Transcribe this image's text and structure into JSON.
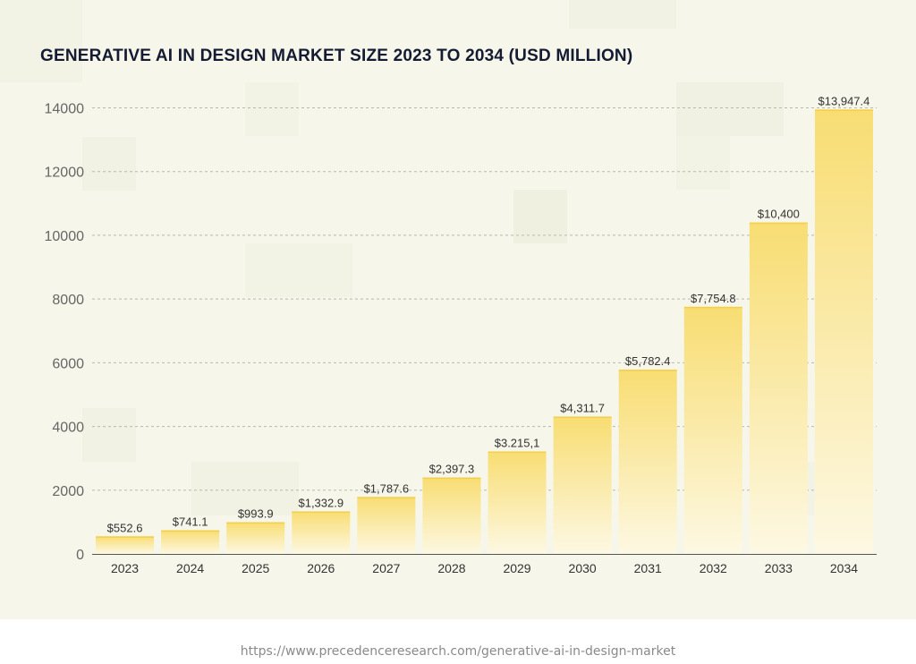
{
  "chart_data": {
    "type": "bar",
    "title": "GENERATIVE AI IN DESIGN MARKET SIZE 2023 TO 2034 (USD MILLION)",
    "xlabel": "",
    "ylabel": "",
    "categories": [
      "2023",
      "2024",
      "2025",
      "2026",
      "2027",
      "2028",
      "2029",
      "2030",
      "2031",
      "2032",
      "2033",
      "2034"
    ],
    "values": [
      552.6,
      741.1,
      993.9,
      1332.9,
      1787.6,
      2397.3,
      3215.1,
      4311.7,
      5782.4,
      7754.8,
      10400,
      13947.4
    ],
    "data_labels": [
      "$552.6",
      "$741.1",
      "$993.9",
      "$1,332.9",
      "$1,787.6",
      "$2,397.3",
      "$3.215,1",
      "$4,311.7",
      "$5,782.4",
      "$7,754.8",
      "$10,400",
      "$13,947.4"
    ],
    "y_ticks": [
      0,
      2000,
      4000,
      6000,
      8000,
      10000,
      12000,
      14000
    ],
    "ylim": [
      0,
      14000
    ],
    "grid": "horizontal dashed",
    "legend": "none",
    "colors": {
      "bar_top": "#f8dd72",
      "bar_bottom": "#fdf8e3",
      "bar_edge": "#f3cf47",
      "grid": "#b8b8b0",
      "axis": "#555555"
    }
  },
  "source_url": "https://www.precedenceresearch.com/generative-ai-in-design-market"
}
